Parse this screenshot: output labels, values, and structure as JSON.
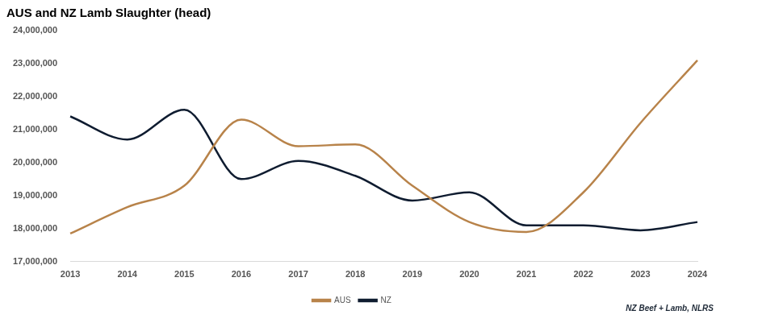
{
  "chart_data": {
    "type": "line",
    "title": "AUS and NZ Lamb Slaughter (head)",
    "annotations": [
      "NZ Beef + Lamb, NLRS"
    ],
    "categories": [
      "2013",
      "2014",
      "2015",
      "2016",
      "2017",
      "2018",
      "2019",
      "2020",
      "2021",
      "2022",
      "2023",
      "2024"
    ],
    "series": [
      {
        "name": "AUS",
        "color": "#b8834a",
        "values": [
          17850000,
          18650000,
          19300000,
          21300000,
          20500000,
          20550000,
          19300000,
          18200000,
          17900000,
          19100000,
          21200000,
          23100000
        ]
      },
      {
        "name": "NZ",
        "color": "#0f1c30",
        "values": [
          21400000,
          20700000,
          21600000,
          19500000,
          20050000,
          19600000,
          18850000,
          19100000,
          18100000,
          18100000,
          17950000,
          18200000
        ]
      }
    ],
    "ylim": [
      17000000,
      24000000
    ],
    "yticks": [
      {
        "value": 17000000,
        "label": "17,000,000"
      },
      {
        "value": 18000000,
        "label": "18,000,000"
      },
      {
        "value": 19000000,
        "label": "19,000,000"
      },
      {
        "value": 20000000,
        "label": "20,000,000"
      },
      {
        "value": 21000000,
        "label": "21,000,000"
      },
      {
        "value": 22000000,
        "label": "22,000,000"
      },
      {
        "value": 23000000,
        "label": "23,000,000"
      },
      {
        "value": 24000000,
        "label": "24,000,000"
      }
    ],
    "grid": false,
    "legend": "bottom"
  }
}
